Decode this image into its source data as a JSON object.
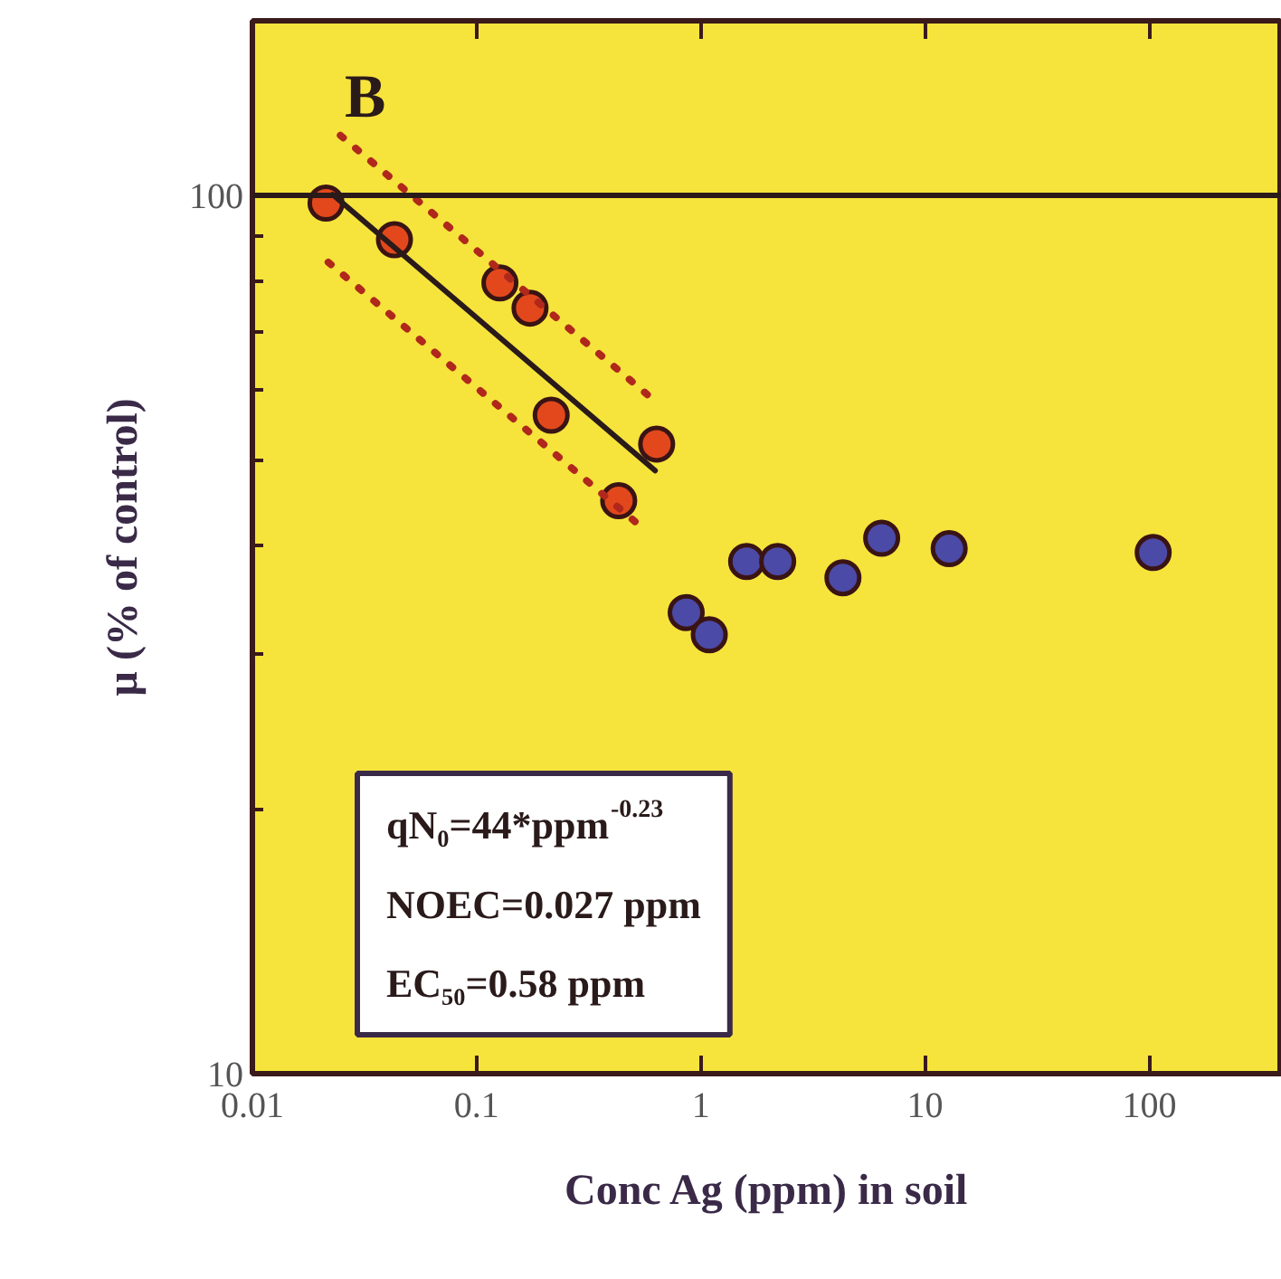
{
  "chart_data": {
    "type": "scatter",
    "xlabel": "Conc Ag (ppm) in soil",
    "ylabel": "µ (% of control)",
    "log": "xy",
    "xlim": [
      0.01,
      390
    ],
    "ylim": [
      10,
      158
    ],
    "xticks": [
      0.01,
      0.1,
      1,
      10,
      100
    ],
    "yticks": [
      10,
      100
    ],
    "marker": "circle",
    "series": [
      {
        "color": "#e2481c",
        "x": [
          0.0213,
          0.043,
          0.127,
          0.173,
          0.215,
          0.635,
          0.43
        ],
        "values": [
          98,
          89,
          79.5,
          74.4,
          56.2,
          52.1,
          44.9
        ]
      },
      {
        "color": "#4b4aa6",
        "x": [
          0.86,
          1.09,
          1.6,
          2.2,
          4.3,
          6.4,
          12.8,
          104
        ],
        "values": [
          33.5,
          31.6,
          38.3,
          38.3,
          36.7,
          40.7,
          39.6,
          39.2
        ]
      },
      {
        "type": "line",
        "color": "#2a1a1a",
        "line_style": "solid",
        "marker": "none",
        "x": [
          0.0228,
          0.625
        ],
        "values": [
          100.2,
          48.6
        ]
      },
      {
        "type": "line",
        "color": "#b0281c",
        "line_style": "dotted",
        "marker": "none",
        "x": [
          0.0247,
          0.625
        ],
        "values": [
          117,
          58.3
        ]
      },
      {
        "type": "line",
        "color": "#b0281c",
        "line_style": "dotted",
        "marker": "none",
        "x": [
          0.0218,
          0.55
        ],
        "values": [
          83.9,
          41.8
        ]
      }
    ],
    "ref_lines": [
      {
        "axis": "y",
        "value": 100,
        "label": null,
        "color": "#2a1a1a"
      }
    ],
    "annotations": [
      "B",
      "qN₀=44*ppm$^{-0.23}$",
      "NOEC=0.027 ppm",
      "EC₅₀=0.58 ppm"
    ],
    "grid": false
  }
}
